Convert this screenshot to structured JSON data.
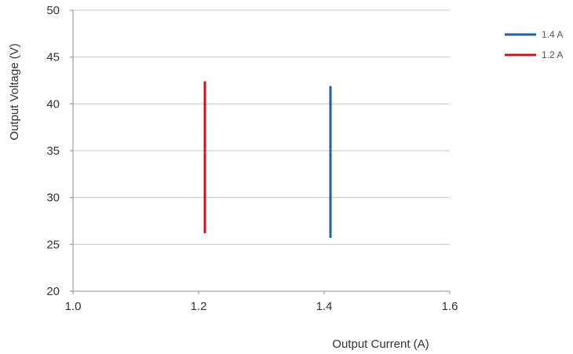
{
  "chart_data": {
    "type": "line",
    "title": "",
    "xlabel": "Output Current (A)",
    "ylabel": "Output Voltage (V)",
    "xlim": [
      1.0,
      1.6
    ],
    "ylim": [
      20,
      50
    ],
    "x_ticks": [
      "1.0",
      "1.2",
      "1.4",
      "1.6"
    ],
    "y_ticks": [
      "20",
      "25",
      "30",
      "35",
      "40",
      "45",
      "50"
    ],
    "grid": "horizontal",
    "legend_position": "top-right",
    "series": [
      {
        "name": "1.4 A",
        "color": "#1f5fa6",
        "points": [
          [
            1.41,
            25.8
          ],
          [
            1.41,
            41.8
          ]
        ]
      },
      {
        "name": "1.2 A",
        "color": "#d0101f",
        "points": [
          [
            1.21,
            26.3
          ],
          [
            1.21,
            42.3
          ]
        ]
      }
    ]
  }
}
